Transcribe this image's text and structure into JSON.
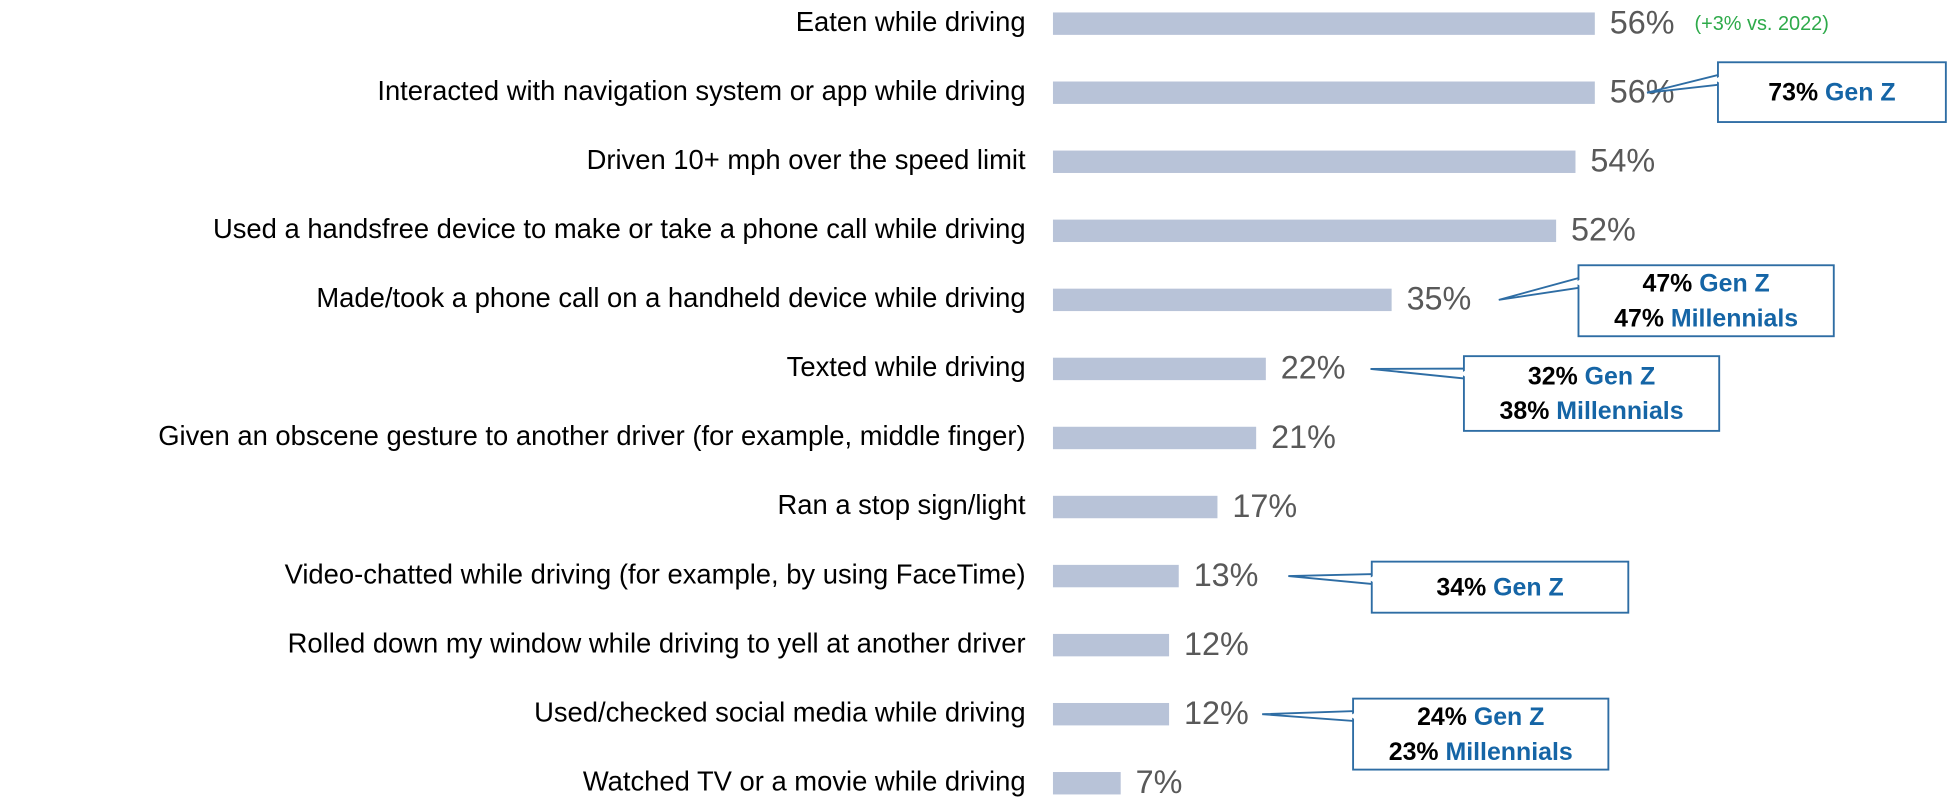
{
  "chart_data": {
    "type": "bar",
    "orientation": "horizontal",
    "color": "#b8c3d8",
    "categories": [
      "Eaten while driving",
      "Interacted with navigation system or app while driving",
      "Driven 10+ mph over the speed limit",
      "Used a handsfree device to make or take a phone call while driving",
      "Made/took a phone call on a handheld device while driving",
      "Texted while driving",
      "Given an obscene gesture to another driver (for example, middle finger)",
      "Ran a stop sign/light",
      "Video-chatted while driving (for example, by using FaceTime)",
      "Rolled down my window while driving to yell at another driver",
      "Used/checked social media while driving",
      "Watched TV or a movie while driving"
    ],
    "values": [
      56,
      56,
      54,
      52,
      35,
      22,
      21,
      17,
      13,
      12,
      12,
      7
    ],
    "value_labels": [
      "56%",
      "56%",
      "54%",
      "52%",
      "35%",
      "22%",
      "21%",
      "17%",
      "13%",
      "12%",
      "12%",
      "7%"
    ],
    "annotation": "(+3% vs. 2022)",
    "callouts": [
      [
        {
          "share": "73%",
          "group": "Gen Z"
        }
      ],
      [
        {
          "share": "47%",
          "group": "Gen Z"
        },
        {
          "share": "47%",
          "group": "Millennials"
        }
      ],
      [
        {
          "share": "32%",
          "group": "Gen Z"
        },
        {
          "share": "38%",
          "group": "Millennials"
        }
      ],
      [
        {
          "share": "34%",
          "group": "Gen Z"
        }
      ],
      [
        {
          "share": "24%",
          "group": "Gen Z"
        },
        {
          "share": "23%",
          "group": "Millennials"
        }
      ]
    ]
  }
}
